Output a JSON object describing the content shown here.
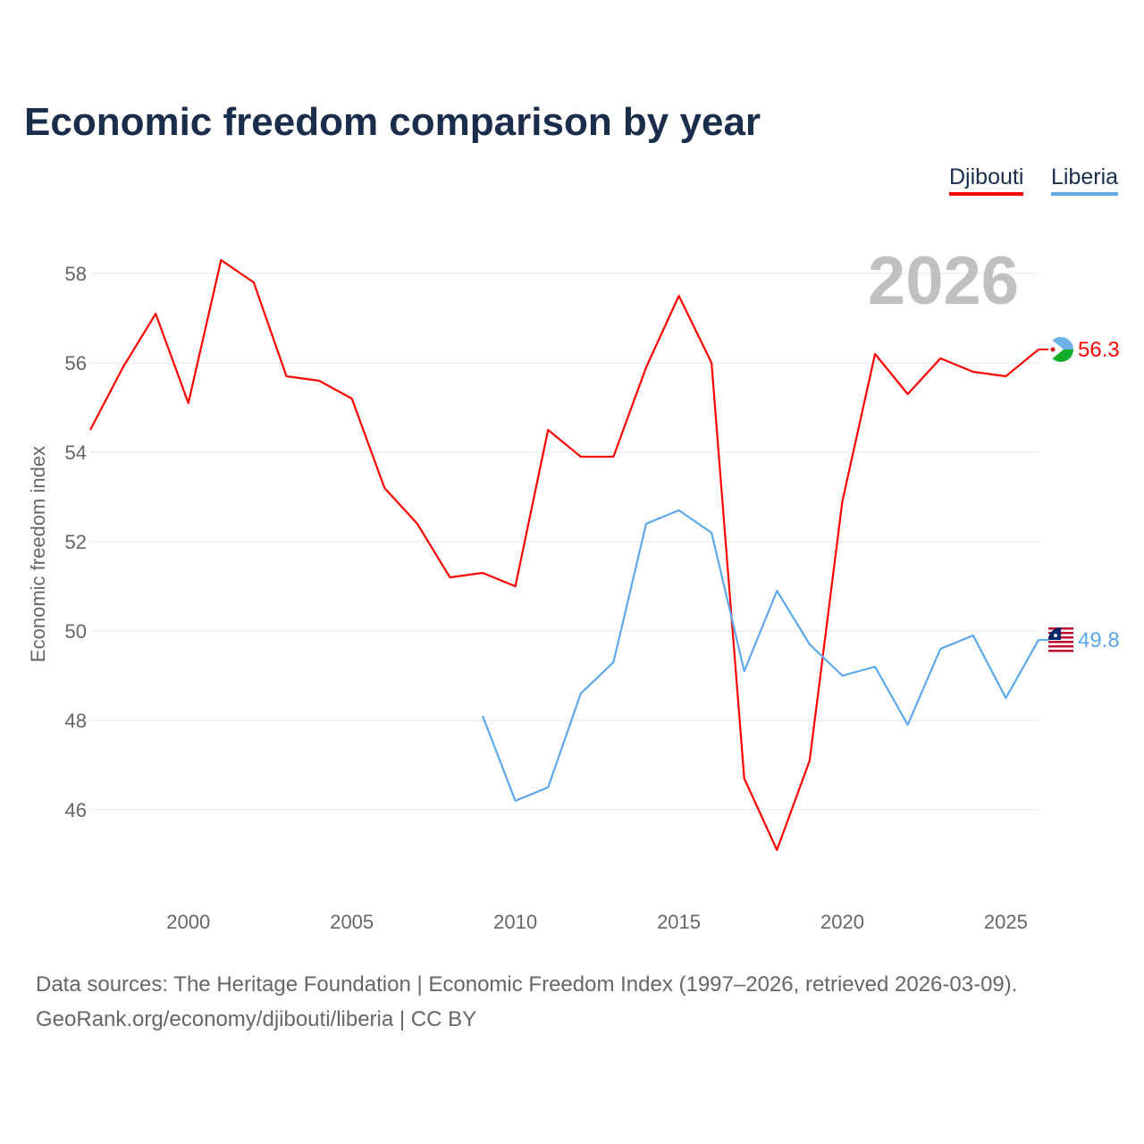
{
  "chart_data": {
    "type": "line",
    "title": "Economic freedom comparison by year",
    "xlabel": "",
    "ylabel": "Economic freedom index",
    "xlim": [
      1997,
      2026
    ],
    "ylim": [
      43.9,
      58.9
    ],
    "grid": true,
    "legend_position": "top-right",
    "current_year_label": "2026",
    "x_ticks": [
      2000,
      2005,
      2010,
      2015,
      2020,
      2025
    ],
    "y_ticks": [
      46,
      48,
      50,
      52,
      54,
      56,
      58
    ],
    "series": [
      {
        "name": "Djibouti",
        "color": "#ff0000",
        "end_label": "56.3",
        "x": [
          1997,
          1998,
          1999,
          2000,
          2001,
          2002,
          2003,
          2004,
          2005,
          2006,
          2007,
          2008,
          2009,
          2010,
          2011,
          2012,
          2013,
          2014,
          2015,
          2016,
          2017,
          2018,
          2019,
          2020,
          2021,
          2022,
          2023,
          2024,
          2025,
          2026
        ],
        "values": [
          54.5,
          55.9,
          57.1,
          55.1,
          58.3,
          57.8,
          55.7,
          55.6,
          55.2,
          53.2,
          52.4,
          51.2,
          51.3,
          51.0,
          54.5,
          53.9,
          53.9,
          55.9,
          57.5,
          56.0,
          46.7,
          45.1,
          47.1,
          52.9,
          56.2,
          55.3,
          56.1,
          55.8,
          55.7,
          56.3
        ]
      },
      {
        "name": "Liberia",
        "color": "#5ca8ec",
        "end_label": "49.8",
        "x": [
          2009,
          2010,
          2011,
          2012,
          2013,
          2014,
          2015,
          2016,
          2017,
          2018,
          2019,
          2020,
          2021,
          2022,
          2023,
          2024,
          2025,
          2026
        ],
        "values": [
          48.1,
          46.2,
          46.5,
          48.6,
          49.3,
          52.4,
          52.7,
          52.2,
          49.1,
          50.9,
          49.7,
          49.0,
          49.2,
          47.9,
          49.6,
          49.9,
          48.5,
          49.8
        ]
      }
    ]
  },
  "footer": {
    "line1": "Data sources: The Heritage Foundation | Economic Freedom Index (1997–2026, retrieved 2026-03-09).",
    "line2": "GeoRank.org/economy/djibouti/liberia | CC BY"
  }
}
